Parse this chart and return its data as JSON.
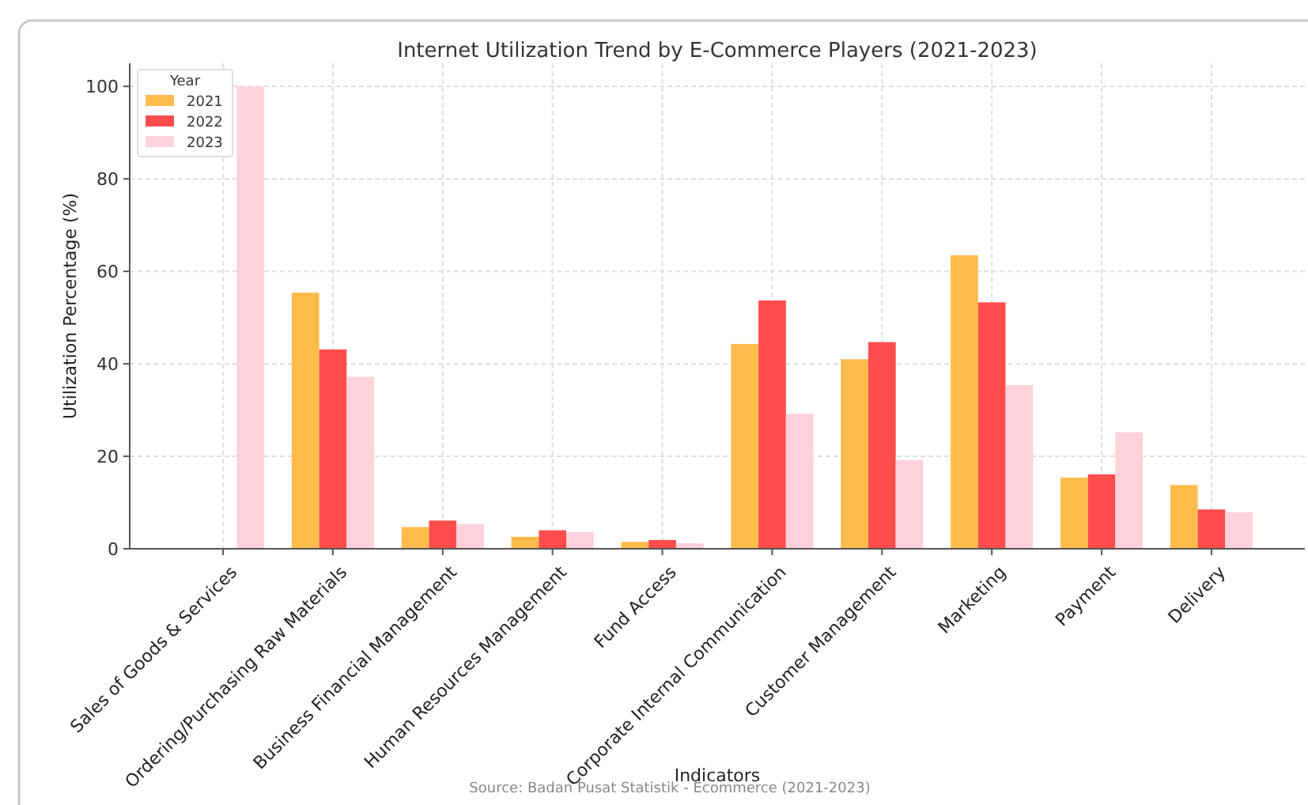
{
  "chart_data": {
    "type": "bar",
    "title": "Internet Utilization Trend by E-Commerce Players (2021-2023)",
    "xlabel": "Indicators",
    "ylabel": "Utilization Percentage (%)",
    "legend_title": "Year",
    "annotations": [
      "Source: Badan Pusat Statistik - Ecommerce (2021-2023)"
    ],
    "categories": [
      "Sales of Goods & Services",
      "Ordering/Purchasing Raw Materials",
      "Business Financial Management",
      "Human Resources Management",
      "Fund Access",
      "Corporate Internal Communication",
      "Customer Management",
      "Marketing",
      "Payment",
      "Delivery"
    ],
    "series": [
      {
        "name": "2021",
        "color": "#ffbc4c",
        "values": [
          null,
          55.4,
          4.7,
          2.6,
          1.5,
          44.3,
          41.0,
          63.5,
          15.4,
          13.8
        ]
      },
      {
        "name": "2022",
        "color": "#ff4d4d",
        "values": [
          null,
          43.1,
          6.1,
          4.0,
          1.9,
          53.7,
          44.7,
          53.3,
          16.1,
          8.5
        ]
      },
      {
        "name": "2023",
        "color": "#ffd1da",
        "values": [
          100,
          37.2,
          5.3,
          3.6,
          1.2,
          29.2,
          19.2,
          35.4,
          25.2,
          7.9
        ]
      }
    ],
    "ylim": [
      0,
      105
    ],
    "yticks": [
      0,
      20,
      40,
      60,
      80,
      100
    ],
    "grid": true,
    "legend": "top left"
  }
}
